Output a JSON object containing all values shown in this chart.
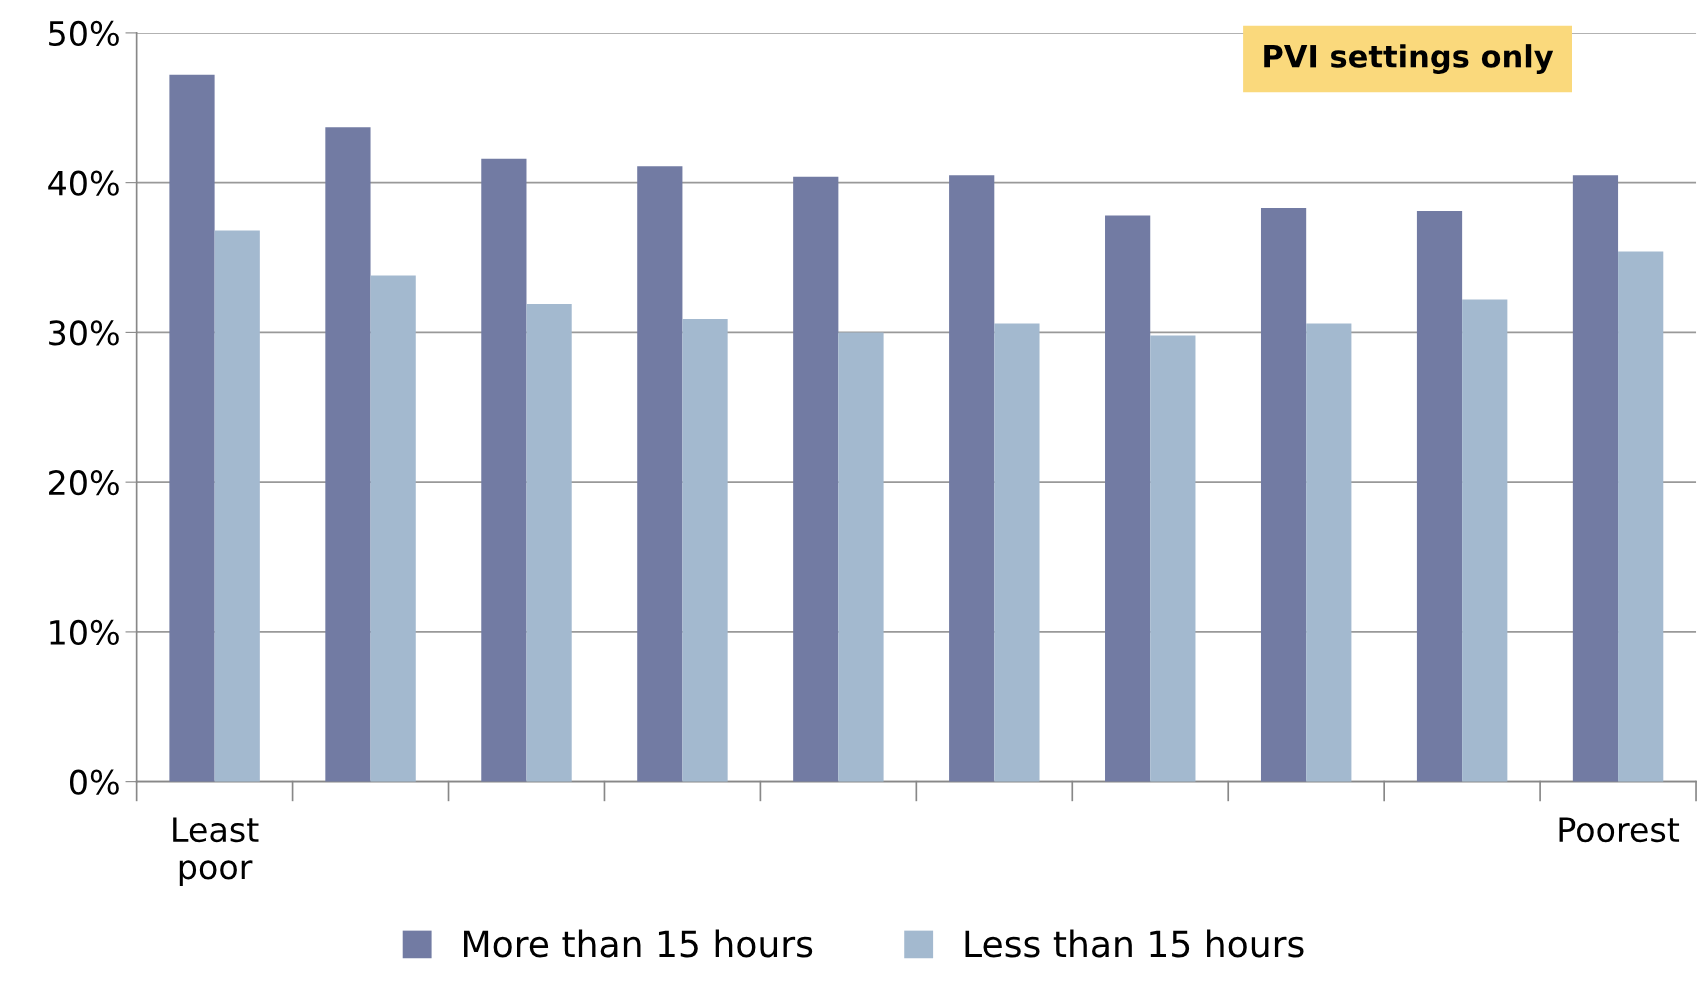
{
  "chart_data": {
    "type": "bar",
    "categories": [
      "Least\npoor",
      null,
      null,
      null,
      null,
      null,
      null,
      null,
      null,
      "Poorest"
    ],
    "series": [
      {
        "name": "More than 15 hours",
        "color": "#727ba3",
        "values": [
          47.2,
          43.7,
          41.6,
          41.1,
          40.4,
          40.5,
          37.8,
          38.3,
          38.1,
          40.5
        ]
      },
      {
        "name": "Less than 15 hours",
        "color": "#a3b9cf",
        "values": [
          36.8,
          33.8,
          31.9,
          30.9,
          30.0,
          30.6,
          29.8,
          30.6,
          32.2,
          35.4
        ]
      }
    ],
    "ylim": [
      0,
      50
    ],
    "yticks": [
      {
        "value": 0,
        "label": "0%"
      },
      {
        "value": 10,
        "label": "10%"
      },
      {
        "value": 20,
        "label": "20%"
      },
      {
        "value": 30,
        "label": "30%"
      },
      {
        "value": 40,
        "label": "40%"
      },
      {
        "value": 50,
        "label": "50%"
      }
    ],
    "grid": "y",
    "legend": "bottom",
    "annotations": [
      "PVI settings only"
    ]
  }
}
